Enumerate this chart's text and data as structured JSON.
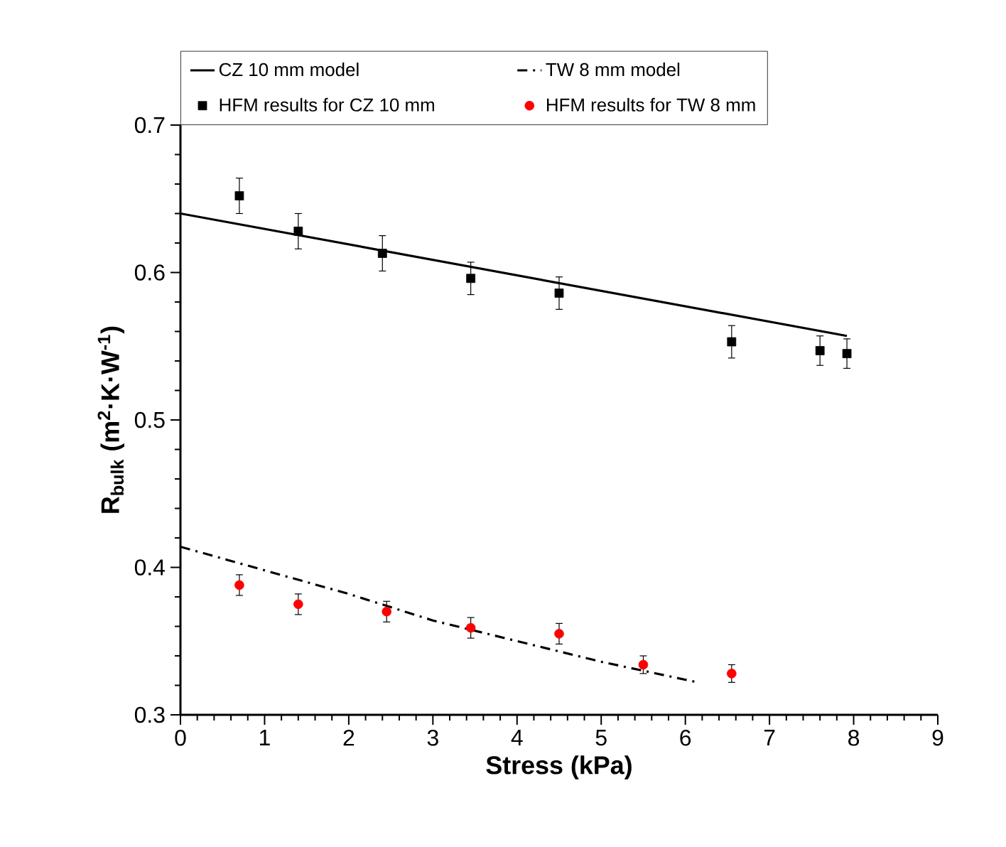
{
  "chart_data": {
    "type": "line",
    "xlabel": "Stress (kPa)",
    "ylabel": "R$_{bulk}$ (m$^{2}$·K·W$^{-1}$)",
    "xlim": [
      0,
      9
    ],
    "ylim": [
      0.3,
      0.7
    ],
    "xticks": [
      0,
      1,
      2,
      3,
      4,
      5,
      6,
      7,
      8,
      9
    ],
    "yticks": [
      0.3,
      0.4,
      0.5,
      0.6,
      0.7
    ],
    "legend": "top",
    "grid": false,
    "series": [
      {
        "name": "CZ 10 mm model",
        "color": "#000000",
        "line_style": "solid",
        "marker": "none",
        "x": [
          0,
          7.92
        ],
        "values": [
          0.64,
          0.557
        ]
      },
      {
        "name": "TW 8 mm model",
        "color": "#000000",
        "line_style": "dashdot",
        "marker": "none",
        "x": [
          0,
          1,
          2,
          3,
          4,
          5,
          6.15
        ],
        "values": [
          0.414,
          0.398,
          0.382,
          0.364,
          0.35,
          0.336,
          0.322
        ]
      },
      {
        "name": "HFM results for CZ 10 mm",
        "type": "scatter",
        "color": "#000000",
        "marker": "square",
        "x": [
          0.7,
          1.4,
          2.4,
          3.45,
          4.5,
          6.55,
          7.6,
          7.92
        ],
        "values": [
          0.652,
          0.628,
          0.613,
          0.596,
          0.586,
          0.553,
          0.547,
          0.545
        ],
        "errors": [
          0.012,
          0.012,
          0.012,
          0.011,
          0.011,
          0.011,
          0.01,
          0.01
        ]
      },
      {
        "name": "HFM results for TW 8 mm",
        "type": "scatter",
        "color": "#ff0000",
        "marker": "circle",
        "x": [
          0.7,
          1.4,
          2.45,
          3.45,
          4.5,
          5.5,
          6.55
        ],
        "values": [
          0.388,
          0.375,
          0.37,
          0.359,
          0.355,
          0.334,
          0.328
        ],
        "errors": [
          0.007,
          0.007,
          0.007,
          0.007,
          0.007,
          0.006,
          0.006
        ]
      }
    ]
  }
}
